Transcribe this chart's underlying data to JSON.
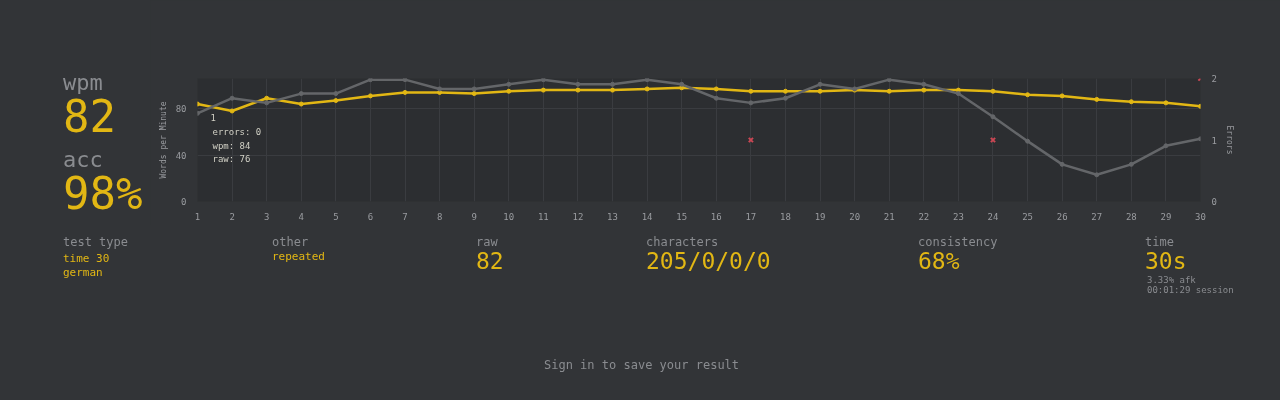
{
  "chart_data": {
    "type": "line",
    "xlabel": null,
    "ylabel": "Words per Minute",
    "y2label": "Errors",
    "x": [
      1,
      2,
      3,
      4,
      5,
      6,
      7,
      8,
      9,
      10,
      11,
      12,
      13,
      14,
      15,
      16,
      17,
      18,
      19,
      20,
      21,
      22,
      23,
      24,
      25,
      26,
      27,
      28,
      29,
      30
    ],
    "series": [
      {
        "type": "scatter",
        "axis": "y2",
        "color": "#ca4754",
        "marker": "cross",
        "values": [
          null,
          null,
          null,
          null,
          null,
          null,
          null,
          null,
          null,
          null,
          null,
          null,
          null,
          null,
          null,
          null,
          1,
          null,
          null,
          null,
          null,
          null,
          null,
          1,
          null,
          null,
          null,
          null,
          null,
          2
        ]
      },
      {
        "color": "#e2b714",
        "marker": "circle",
        "values": [
          84,
          78,
          89,
          84,
          87,
          91,
          94,
          94,
          93,
          95,
          96,
          96,
          96,
          97,
          98,
          97,
          95,
          95,
          95,
          96,
          95,
          96,
          96,
          95,
          92,
          91,
          88,
          86,
          85,
          82
        ]
      },
      {
        "color": "#646669",
        "marker": "circle",
        "values": [
          76,
          89,
          85,
          93,
          93,
          105,
          105,
          97,
          97,
          101,
          105,
          101,
          101,
          105,
          101,
          89,
          85,
          89,
          101,
          97,
          105,
          101,
          93,
          73,
          52,
          32,
          23,
          32,
          48,
          54
        ]
      }
    ],
    "xlim": [
      1,
      30
    ],
    "xticks": [
      1,
      2,
      3,
      4,
      5,
      6,
      7,
      8,
      9,
      10,
      11,
      12,
      13,
      14,
      15,
      16,
      17,
      18,
      19,
      20,
      21,
      22,
      23,
      24,
      25,
      26,
      27,
      28,
      29,
      30
    ],
    "ylim": [
      0,
      106
    ],
    "yticks": [
      0,
      40,
      80
    ],
    "y2lim": [
      0,
      2
    ],
    "y2ticks": [
      0,
      1,
      2
    ],
    "grid": true,
    "annotations": [
      "1",
      "errors: 0",
      "wpm: 84",
      "raw: 76",
      "wpm",
      "82",
      "acc",
      "98%",
      "test type",
      "time 30",
      "german",
      "other",
      "repeated",
      "raw",
      "82",
      "characters",
      "205/0/0/0",
      "consistency",
      "68%",
      "time",
      "30s",
      "3.33% afk",
      "00:01:29 session",
      "Sign in to save your result"
    ]
  }
}
